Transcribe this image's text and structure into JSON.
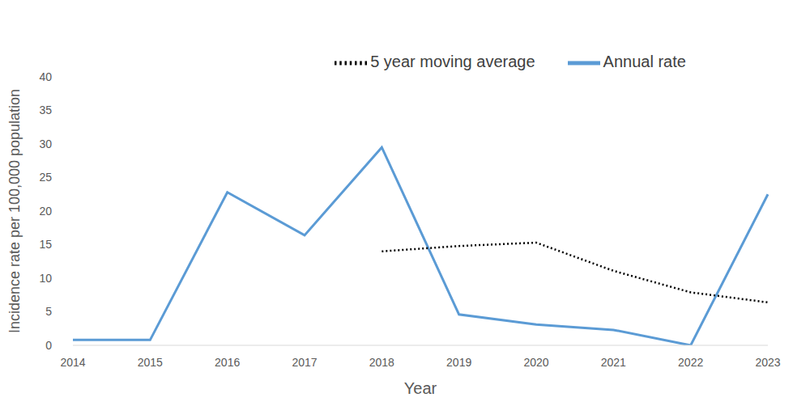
{
  "chart_data": {
    "type": "line",
    "x_label": "Year",
    "y_label": "Incidence rate per 100,000 population",
    "categories": [
      "2014",
      "2015",
      "2016",
      "2017",
      "2018",
      "2019",
      "2020",
      "2021",
      "2022",
      "2023"
    ],
    "series": [
      {
        "name": "Annual rate",
        "color": "#5b9bd5",
        "line_style": "solid",
        "values": [
          0.8,
          0.8,
          22.8,
          16.4,
          29.5,
          4.6,
          3.1,
          2.3,
          0.0,
          22.5
        ]
      },
      {
        "name": "5 year moving average",
        "color": "#000000",
        "line_style": "dotted",
        "values": [
          null,
          null,
          null,
          null,
          14.0,
          14.8,
          15.3,
          11.1,
          7.9,
          6.4
        ]
      }
    ],
    "ylim": [
      0,
      40
    ],
    "yticks": [
      0,
      5,
      10,
      15,
      20,
      25,
      30,
      35,
      40
    ],
    "grid": false,
    "legend": "top"
  }
}
